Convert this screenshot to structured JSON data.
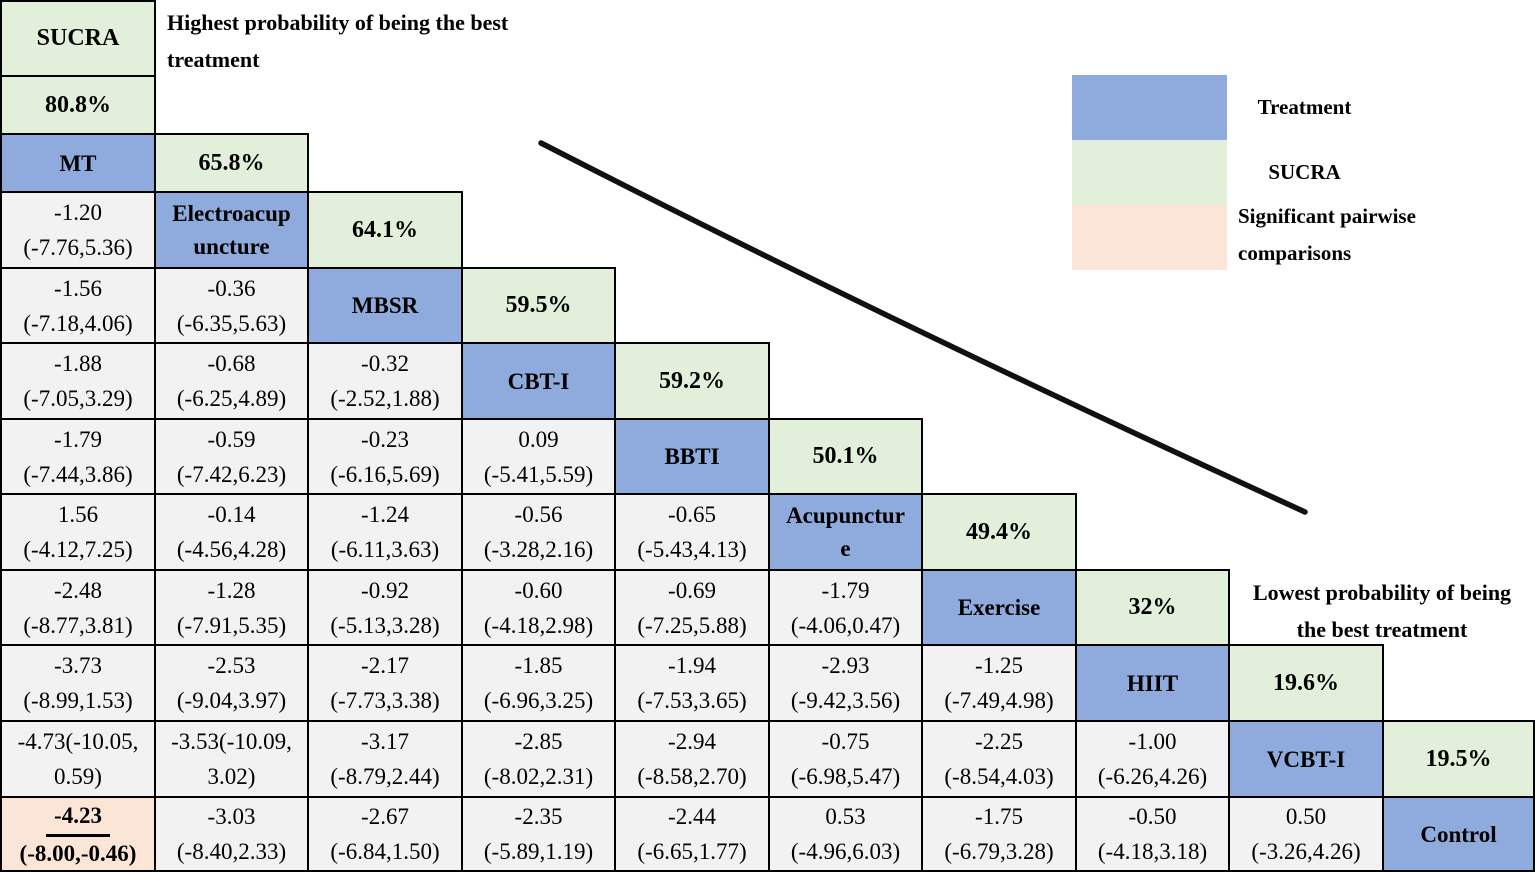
{
  "colors": {
    "treatment_fill": "#8faadc",
    "sucra_fill": "#e2efda",
    "significant_fill": "#fbe5d6",
    "comparison_fill": "#f2f2f2",
    "border": "#000000",
    "line": "#111111",
    "text": "#000000"
  },
  "annotations": {
    "highest": [
      "Highest probability of being the best",
      "treatment"
    ],
    "lowest": [
      "Lowest probability of being",
      "the best treatment"
    ]
  },
  "legend": {
    "items": [
      {
        "name": "treatment",
        "label": "Treatment"
      },
      {
        "name": "sucra",
        "label": "SUCRA"
      },
      {
        "name": "significant",
        "label": "Significant pairwise comparisons"
      }
    ]
  },
  "chart_data": {
    "type": "table",
    "subtype": "network-meta-analysis league table (lower triangle)",
    "sucra_header": "SUCRA",
    "treatments": [
      "MT",
      "Electroacupuncture",
      "MBSR",
      "CBT-I",
      "BBTI",
      "Acupuncture",
      "Exercise",
      "HIIT",
      "VCBT-I",
      "Control"
    ],
    "sucra_values": [
      "80.8%",
      "65.8%",
      "64.1%",
      "59.5%",
      "59.2%",
      "50.1%",
      "49.4%",
      "32%",
      "19.6%",
      "19.5%"
    ],
    "effect_rows": [
      {
        "treatment": "Electroacupuncture",
        "vs_previous": [
          "-1.20 (-7.76,5.36)"
        ]
      },
      {
        "treatment": "MBSR",
        "vs_previous": [
          "-1.56 (-7.18,4.06)",
          "-0.36 (-6.35,5.63)"
        ]
      },
      {
        "treatment": "CBT-I",
        "vs_previous": [
          "-1.88 (-7.05,3.29)",
          "-0.68 (-6.25,4.89)",
          "-0.32 (-2.52,1.88)"
        ]
      },
      {
        "treatment": "BBTI",
        "vs_previous": [
          "-1.79 (-7.44,3.86)",
          "-0.59 (-7.42,6.23)",
          "-0.23 (-6.16,5.69)",
          "0.09 (-5.41,5.59)"
        ]
      },
      {
        "treatment": "Acupuncture",
        "vs_previous": [
          "1.56 (-4.12,7.25)",
          "-0.14 (-4.56,4.28)",
          "-1.24 (-6.11,3.63)",
          "-0.56 (-3.28,2.16)",
          "-0.65 (-5.43,4.13)"
        ]
      },
      {
        "treatment": "Exercise",
        "vs_previous": [
          "-2.48 (-8.77,3.81)",
          "-1.28 (-7.91,5.35)",
          "-0.92 (-5.13,3.28)",
          "-0.60 (-4.18,2.98)",
          "-0.69 (-7.25,5.88)",
          "-1.79 (-4.06,0.47)"
        ]
      },
      {
        "treatment": "HIIT",
        "vs_previous": [
          "-3.73 (-8.99,1.53)",
          "-2.53 (-9.04,3.97)",
          "-2.17 (-7.73,3.38)",
          "-1.85 (-6.96,3.25)",
          "-1.94 (-7.53,3.65)",
          "-2.93 (-9.42,3.56)",
          "-1.25 (-7.49,4.98)"
        ]
      },
      {
        "treatment": "VCBT-I",
        "vs_previous": [
          "-4.73(-10.05, 0.59)",
          "-3.53(-10.09, 3.02)",
          "-3.17 (-8.79,2.44)",
          "-2.85 (-8.02,2.31)",
          "-2.94 (-8.58,2.70)",
          "-0.75 (-6.98,5.47)",
          "-2.25 (-8.54,4.03)",
          "-1.00 (-6.26,4.26)"
        ]
      },
      {
        "treatment": "Control",
        "vs_previous": [
          "-4.23 (-8.00,-0.46)",
          "-3.03 (-8.40,2.33)",
          "-2.67 (-6.84,1.50)",
          "-2.35 (-5.89,1.19)",
          "-2.44 (-6.65,1.77)",
          "0.53 (-4.96,6.03)",
          "-1.75 (-6.79,3.28)",
          "-0.50 (-4.18,3.18)",
          "0.50 (-3.26,4.26)"
        ]
      }
    ],
    "significant_comparisons": [
      {
        "pair": "Control vs MT",
        "value": "-4.23 (-8.00,-0.46)"
      }
    ]
  },
  "grid": {
    "cells": [
      {
        "r": 0,
        "c": 0,
        "type": "sucra-label",
        "lines": [
          "SUCRA"
        ]
      },
      {
        "r": 1,
        "c": 0,
        "type": "sucra",
        "lines": [
          "80.8%"
        ]
      },
      {
        "r": 2,
        "c": 0,
        "type": "treatment",
        "lines": [
          "MT"
        ]
      },
      {
        "r": 2,
        "c": 1,
        "type": "sucra",
        "lines": [
          "65.8%"
        ]
      },
      {
        "r": 3,
        "c": 0,
        "type": "comparison",
        "lines": [
          "-1.20",
          "(-7.76,5.36)"
        ]
      },
      {
        "r": 3,
        "c": 1,
        "type": "treatment",
        "lines": [
          "Electroacup",
          "uncture"
        ]
      },
      {
        "r": 3,
        "c": 2,
        "type": "sucra",
        "lines": [
          "64.1%"
        ]
      },
      {
        "r": 4,
        "c": 0,
        "type": "comparison",
        "lines": [
          "-1.56",
          "(-7.18,4.06)"
        ]
      },
      {
        "r": 4,
        "c": 1,
        "type": "comparison",
        "lines": [
          "-0.36",
          "(-6.35,5.63)"
        ]
      },
      {
        "r": 4,
        "c": 2,
        "type": "treatment",
        "lines": [
          "MBSR"
        ]
      },
      {
        "r": 4,
        "c": 3,
        "type": "sucra",
        "lines": [
          "59.5%"
        ]
      },
      {
        "r": 5,
        "c": 0,
        "type": "comparison",
        "lines": [
          "-1.88",
          "(-7.05,3.29)"
        ]
      },
      {
        "r": 5,
        "c": 1,
        "type": "comparison",
        "lines": [
          "-0.68",
          "(-6.25,4.89)"
        ]
      },
      {
        "r": 5,
        "c": 2,
        "type": "comparison",
        "lines": [
          "-0.32",
          "(-2.52,1.88)"
        ]
      },
      {
        "r": 5,
        "c": 3,
        "type": "treatment",
        "lines": [
          "CBT-I"
        ]
      },
      {
        "r": 5,
        "c": 4,
        "type": "sucra",
        "lines": [
          "59.2%"
        ]
      },
      {
        "r": 6,
        "c": 0,
        "type": "comparison",
        "lines": [
          "-1.79",
          "(-7.44,3.86)"
        ]
      },
      {
        "r": 6,
        "c": 1,
        "type": "comparison",
        "lines": [
          "-0.59",
          "(-7.42,6.23)"
        ]
      },
      {
        "r": 6,
        "c": 2,
        "type": "comparison",
        "lines": [
          "-0.23",
          "(-6.16,5.69)"
        ]
      },
      {
        "r": 6,
        "c": 3,
        "type": "comparison",
        "lines": [
          "0.09",
          "(-5.41,5.59)"
        ]
      },
      {
        "r": 6,
        "c": 4,
        "type": "treatment",
        "lines": [
          "BBTI"
        ]
      },
      {
        "r": 6,
        "c": 5,
        "type": "sucra",
        "lines": [
          "50.1%"
        ]
      },
      {
        "r": 7,
        "c": 0,
        "type": "comparison",
        "lines": [
          "1.56",
          "(-4.12,7.25)"
        ]
      },
      {
        "r": 7,
        "c": 1,
        "type": "comparison",
        "lines": [
          "-0.14",
          "(-4.56,4.28)"
        ]
      },
      {
        "r": 7,
        "c": 2,
        "type": "comparison",
        "lines": [
          "-1.24",
          "(-6.11,3.63)"
        ]
      },
      {
        "r": 7,
        "c": 3,
        "type": "comparison",
        "lines": [
          "-0.56",
          "(-3.28,2.16)"
        ]
      },
      {
        "r": 7,
        "c": 4,
        "type": "comparison",
        "lines": [
          "-0.65",
          "(-5.43,4.13)"
        ]
      },
      {
        "r": 7,
        "c": 5,
        "type": "treatment",
        "lines": [
          "Acupunctur",
          "e"
        ]
      },
      {
        "r": 7,
        "c": 6,
        "type": "sucra",
        "lines": [
          "49.4%"
        ]
      },
      {
        "r": 8,
        "c": 0,
        "type": "comparison",
        "lines": [
          "-2.48",
          "(-8.77,3.81)"
        ]
      },
      {
        "r": 8,
        "c": 1,
        "type": "comparison",
        "lines": [
          "-1.28",
          "(-7.91,5.35)"
        ]
      },
      {
        "r": 8,
        "c": 2,
        "type": "comparison",
        "lines": [
          "-0.92",
          "(-5.13,3.28)"
        ]
      },
      {
        "r": 8,
        "c": 3,
        "type": "comparison",
        "lines": [
          "-0.60",
          "(-4.18,2.98)"
        ]
      },
      {
        "r": 8,
        "c": 4,
        "type": "comparison",
        "lines": [
          "-0.69",
          "(-7.25,5.88)"
        ]
      },
      {
        "r": 8,
        "c": 5,
        "type": "comparison",
        "lines": [
          "-1.79",
          "(-4.06,0.47)"
        ]
      },
      {
        "r": 8,
        "c": 6,
        "type": "treatment",
        "lines": [
          "Exercise"
        ]
      },
      {
        "r": 8,
        "c": 7,
        "type": "sucra",
        "lines": [
          "32%"
        ]
      },
      {
        "r": 9,
        "c": 0,
        "type": "comparison",
        "lines": [
          "-3.73",
          "(-8.99,1.53)"
        ]
      },
      {
        "r": 9,
        "c": 1,
        "type": "comparison",
        "lines": [
          "-2.53",
          "(-9.04,3.97)"
        ]
      },
      {
        "r": 9,
        "c": 2,
        "type": "comparison",
        "lines": [
          "-2.17",
          "(-7.73,3.38)"
        ]
      },
      {
        "r": 9,
        "c": 3,
        "type": "comparison",
        "lines": [
          "-1.85",
          "(-6.96,3.25)"
        ]
      },
      {
        "r": 9,
        "c": 4,
        "type": "comparison",
        "lines": [
          "-1.94",
          "(-7.53,3.65)"
        ]
      },
      {
        "r": 9,
        "c": 5,
        "type": "comparison",
        "lines": [
          "-2.93",
          "(-9.42,3.56)"
        ]
      },
      {
        "r": 9,
        "c": 6,
        "type": "comparison",
        "lines": [
          "-1.25",
          "(-7.49,4.98)"
        ]
      },
      {
        "r": 9,
        "c": 7,
        "type": "treatment",
        "lines": [
          "HIIT"
        ]
      },
      {
        "r": 9,
        "c": 8,
        "type": "sucra",
        "lines": [
          "19.6%"
        ]
      },
      {
        "r": 10,
        "c": 0,
        "type": "comparison",
        "lines": [
          "-4.73(-10.05,",
          "0.59)"
        ]
      },
      {
        "r": 10,
        "c": 1,
        "type": "comparison",
        "lines": [
          "-3.53(-10.09,",
          "3.02)"
        ]
      },
      {
        "r": 10,
        "c": 2,
        "type": "comparison",
        "lines": [
          "-3.17",
          "(-8.79,2.44)"
        ]
      },
      {
        "r": 10,
        "c": 3,
        "type": "comparison",
        "lines": [
          "-2.85",
          "(-8.02,2.31)"
        ]
      },
      {
        "r": 10,
        "c": 4,
        "type": "comparison",
        "lines": [
          "-2.94",
          "(-8.58,2.70)"
        ]
      },
      {
        "r": 10,
        "c": 5,
        "type": "comparison",
        "lines": [
          "-0.75",
          "(-6.98,5.47)"
        ]
      },
      {
        "r": 10,
        "c": 6,
        "type": "comparison",
        "lines": [
          "-2.25",
          "(-8.54,4.03)"
        ]
      },
      {
        "r": 10,
        "c": 7,
        "type": "comparison",
        "lines": [
          "-1.00",
          "(-6.26,4.26)"
        ]
      },
      {
        "r": 10,
        "c": 8,
        "type": "treatment",
        "lines": [
          "VCBT-I"
        ]
      },
      {
        "r": 10,
        "c": 9,
        "type": "sucra",
        "lines": [
          "19.5%"
        ]
      },
      {
        "r": 11,
        "c": 0,
        "type": "significant",
        "lines": [
          "-4.23",
          "(-8.00,-0.46)"
        ],
        "underline_first": true
      },
      {
        "r": 11,
        "c": 1,
        "type": "comparison",
        "lines": [
          "-3.03",
          "(-8.40,2.33)"
        ]
      },
      {
        "r": 11,
        "c": 2,
        "type": "comparison",
        "lines": [
          "-2.67",
          "(-6.84,1.50)"
        ]
      },
      {
        "r": 11,
        "c": 3,
        "type": "comparison",
        "lines": [
          "-2.35",
          "(-5.89,1.19)"
        ]
      },
      {
        "r": 11,
        "c": 4,
        "type": "comparison",
        "lines": [
          "-2.44",
          "(-6.65,1.77)"
        ]
      },
      {
        "r": 11,
        "c": 5,
        "type": "comparison",
        "lines": [
          "0.53",
          "(-4.96,6.03)"
        ]
      },
      {
        "r": 11,
        "c": 6,
        "type": "comparison",
        "lines": [
          "-1.75",
          "(-6.79,3.28)"
        ]
      },
      {
        "r": 11,
        "c": 7,
        "type": "comparison",
        "lines": [
          "-0.50",
          "(-4.18,3.18)"
        ]
      },
      {
        "r": 11,
        "c": 8,
        "type": "comparison",
        "lines": [
          "0.50",
          "(-3.26,4.26)"
        ]
      },
      {
        "r": 11,
        "c": 9,
        "type": "treatment",
        "lines": [
          "Control"
        ]
      }
    ]
  }
}
